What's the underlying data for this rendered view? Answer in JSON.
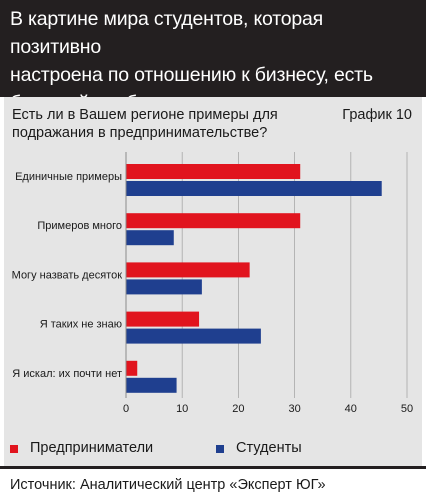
{
  "header": {
    "title_lines": [
      "В картине мира студентов, которая позитивно",
      "настроена по отношению к бизнесу, есть",
      "большой пробел: примеры для подражания"
    ]
  },
  "question_lines": [
    "Есть ли в Вашем регионе примеры для",
    "подражания в предпринимательстве?"
  ],
  "chart_number": "График 10",
  "chart_data": {
    "type": "bar",
    "orientation": "horizontal",
    "categories": [
      "Единичные примеры",
      "Примеров много",
      "Могу назвать десяток",
      "Я таких не знаю",
      "Я искал: их почти нет"
    ],
    "series": [
      {
        "name": "Предприниматели",
        "color": "#e1141e",
        "values": [
          31,
          31,
          22,
          13,
          2
        ]
      },
      {
        "name": "Студенты",
        "color": "#1f3f8f",
        "values": [
          45.5,
          8.5,
          13.5,
          24,
          9
        ]
      }
    ],
    "xlim": [
      0,
      50
    ],
    "xticks": [
      "0",
      "10",
      "20",
      "30",
      "40",
      "50"
    ],
    "grid": true,
    "legend_position": "bottom"
  },
  "footer": {
    "source": "Источник: Аналитический центр «Эксперт ЮГ»"
  }
}
